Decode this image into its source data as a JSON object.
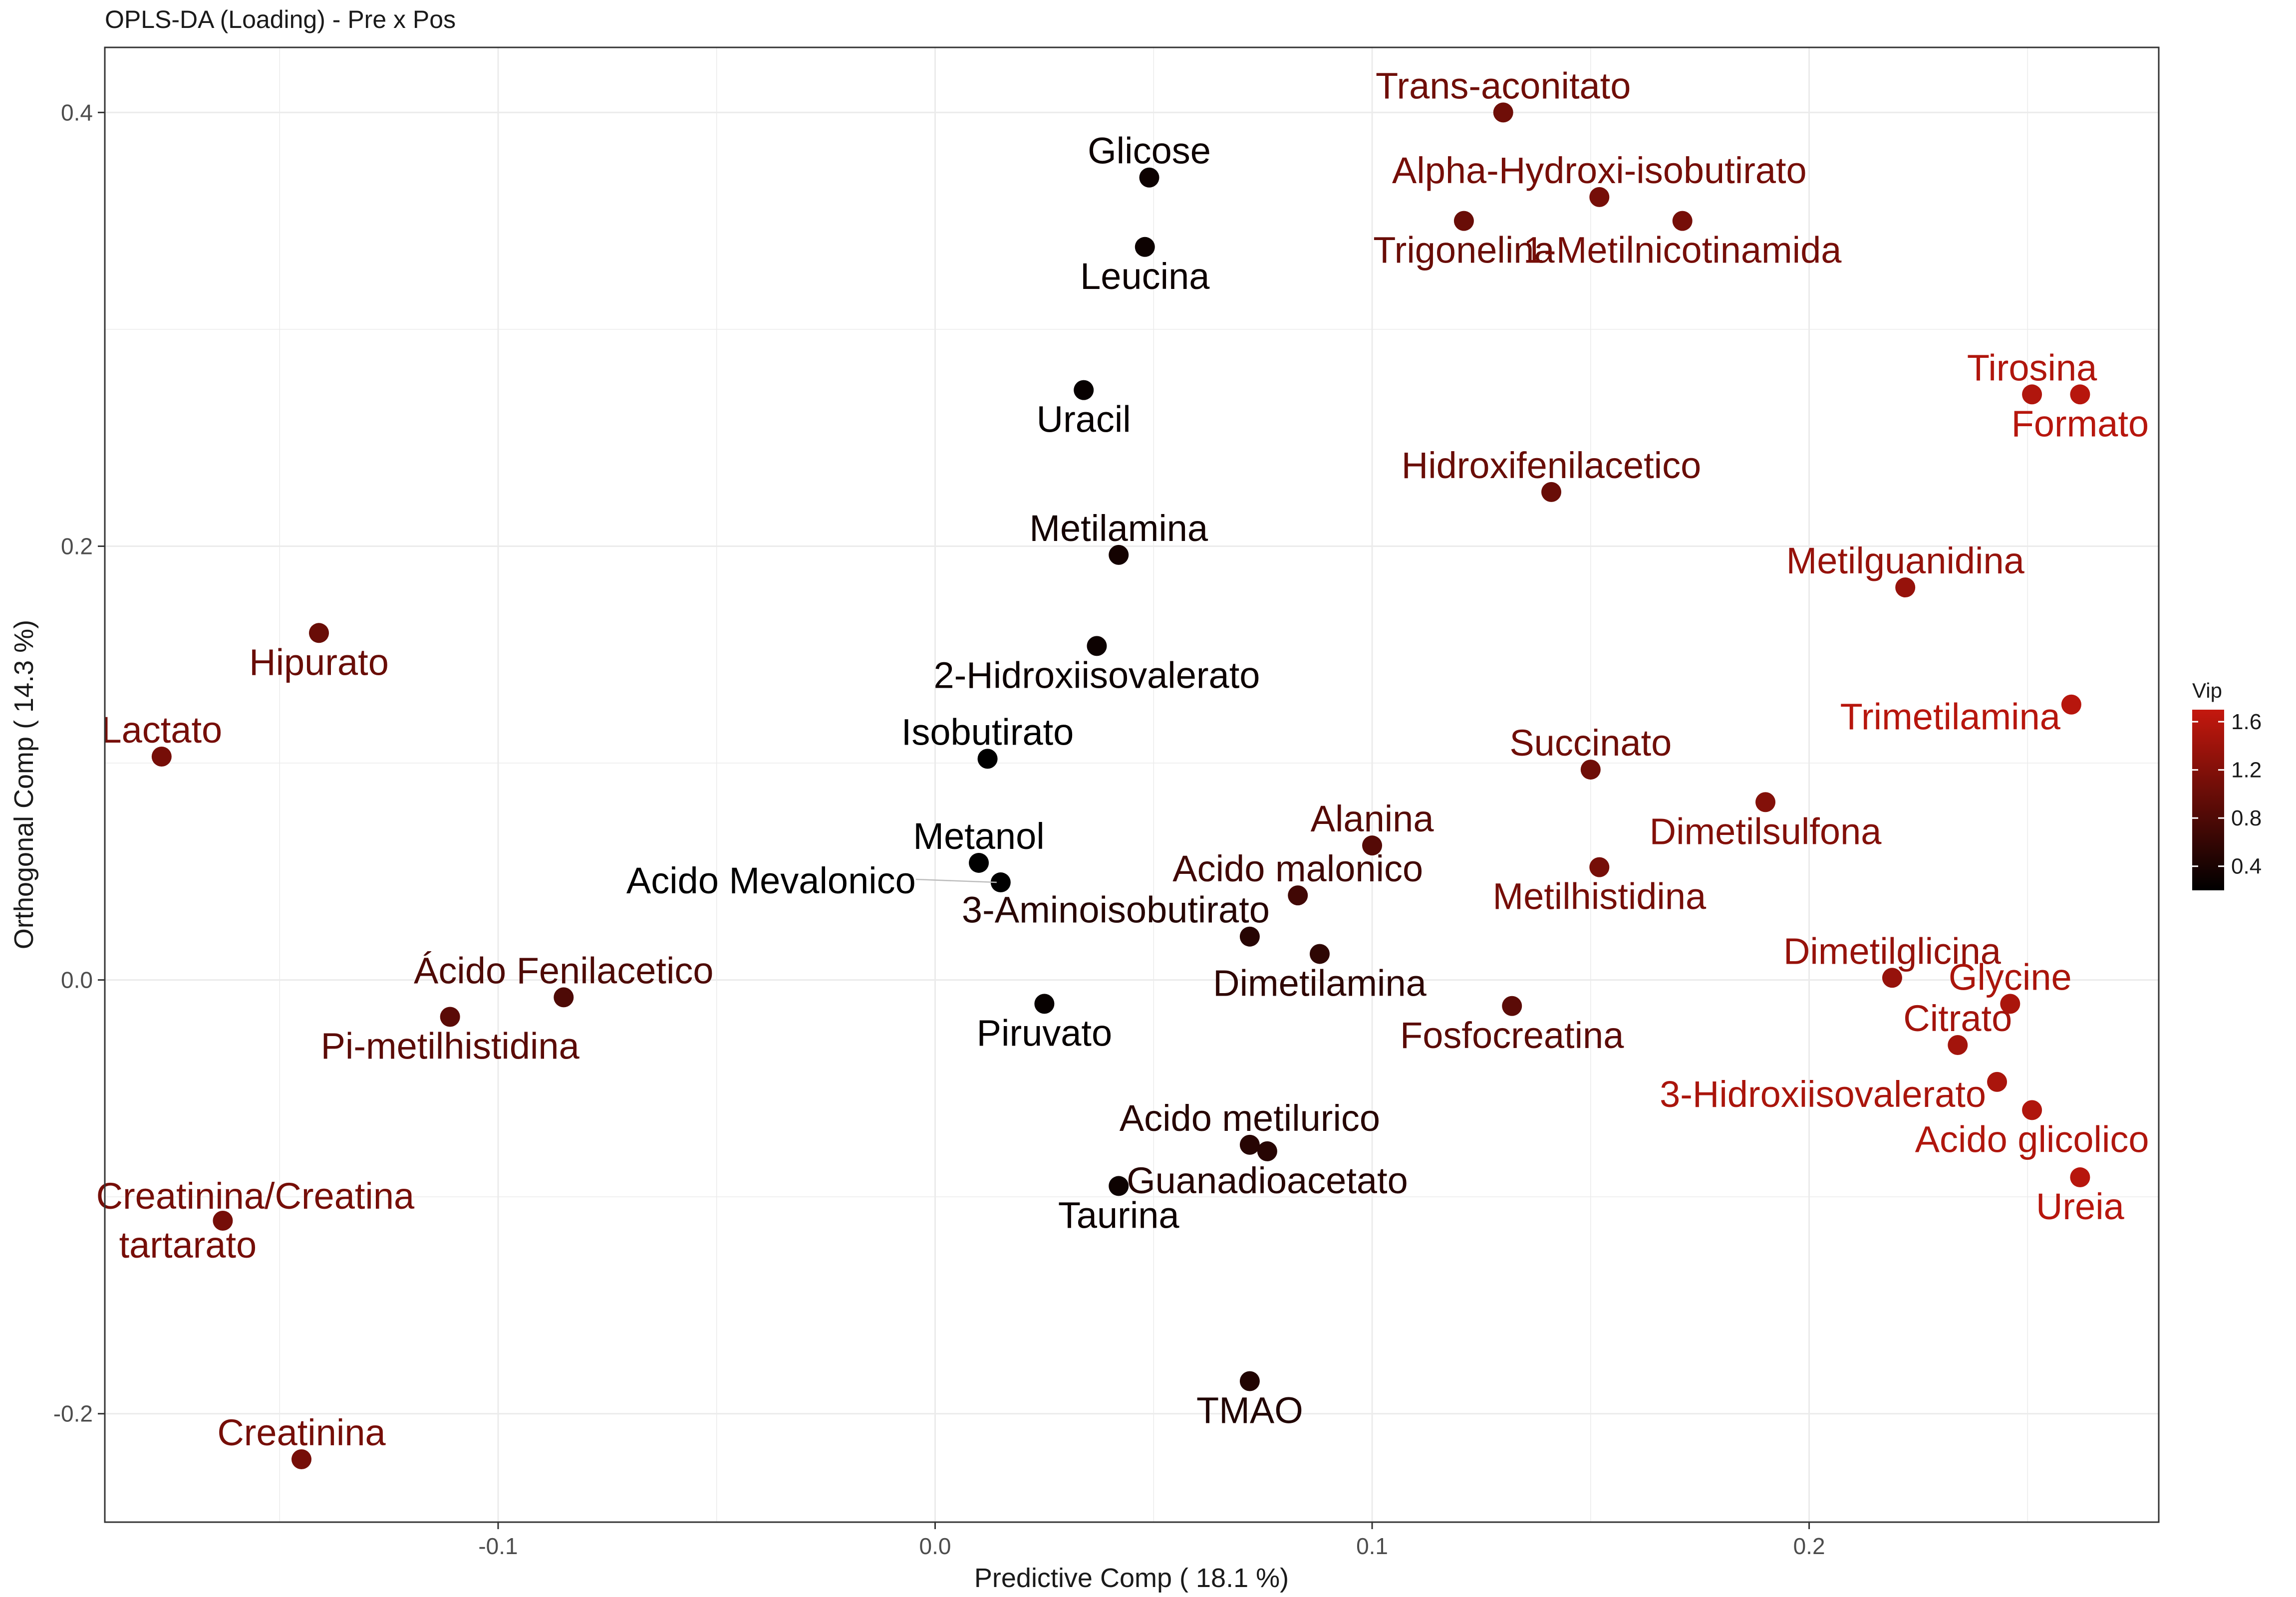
{
  "colors": {
    "low": "#000000",
    "high": "#c4180e",
    "grid": "#ebebeb",
    "panel_border": "#333333"
  },
  "chart_data": {
    "type": "scatter",
    "title": "OPLS-DA (Loading) - Pre x Pos",
    "xlabel": "Predictive Comp  ( 18.1 %)",
    "ylabel": "Orthogonal Comp  ( 14.3 %)",
    "xlim": [
      -0.19,
      0.28
    ],
    "ylim": [
      -0.25,
      0.43
    ],
    "x_ticks": [
      -0.1,
      0.0,
      0.1,
      0.2
    ],
    "x_tick_labels": [
      "-0.1",
      "0.0",
      "0.1",
      "0.2"
    ],
    "y_ticks": [
      -0.2,
      0.0,
      0.2,
      0.4
    ],
    "y_tick_labels": [
      "-0.2",
      "0.0",
      "0.2",
      "0.4"
    ],
    "grid": true,
    "legend": {
      "title": "Vip",
      "position": "right",
      "range": [
        0.2,
        1.7
      ],
      "ticks": [
        0.4,
        0.8,
        1.2,
        1.6
      ],
      "tick_labels": [
        "0.4",
        "0.8",
        "1.2",
        "1.6"
      ]
    },
    "points": [
      {
        "label": "Trans-aconitato",
        "x": 0.13,
        "y": 0.4,
        "vip": 1.05,
        "pos": "above"
      },
      {
        "label": "Glicose",
        "x": 0.049,
        "y": 0.37,
        "vip": 0.3,
        "pos": "above"
      },
      {
        "label": "Alpha-Hydroxi-isobutirato",
        "x": 0.152,
        "y": 0.361,
        "vip": 1.1,
        "pos": "above"
      },
      {
        "label": "Trigonelina",
        "x": 0.121,
        "y": 0.35,
        "vip": 1.0,
        "pos": "below"
      },
      {
        "label": "1-Metilnicotinamida",
        "x": 0.171,
        "y": 0.35,
        "vip": 1.1,
        "pos": "below"
      },
      {
        "label": "Leucina",
        "x": 0.048,
        "y": 0.338,
        "vip": 0.3,
        "pos": "below"
      },
      {
        "label": "Uracil",
        "x": 0.034,
        "y": 0.272,
        "vip": 0.25,
        "pos": "below"
      },
      {
        "label": "Tirosina",
        "x": 0.251,
        "y": 0.27,
        "vip": 1.55,
        "pos": "above"
      },
      {
        "label": "Formato",
        "x": 0.262,
        "y": 0.27,
        "vip": 1.6,
        "pos": "below"
      },
      {
        "label": "Hidroxifenilacetico",
        "x": 0.141,
        "y": 0.225,
        "vip": 1.0,
        "pos": "above"
      },
      {
        "label": "Metilamina",
        "x": 0.042,
        "y": 0.196,
        "vip": 0.35,
        "pos": "above"
      },
      {
        "label": "Metilguanidina",
        "x": 0.222,
        "y": 0.181,
        "vip": 1.35,
        "pos": "above"
      },
      {
        "label": "Hipurato",
        "x": -0.141,
        "y": 0.16,
        "vip": 1.0,
        "pos": "below"
      },
      {
        "label": "2-Hidroxiisovalerato",
        "x": 0.037,
        "y": 0.154,
        "vip": 0.3,
        "pos": "below"
      },
      {
        "label": "Trimetilamina",
        "x": 0.26,
        "y": 0.127,
        "vip": 1.6,
        "pos": "left-below"
      },
      {
        "label": "Lactato",
        "x": -0.177,
        "y": 0.103,
        "vip": 1.1,
        "pos": "above"
      },
      {
        "label": "Isobutirato",
        "x": 0.012,
        "y": 0.102,
        "vip": 0.2,
        "pos": "above"
      },
      {
        "label": "Succinato",
        "x": 0.15,
        "y": 0.097,
        "vip": 1.05,
        "pos": "above"
      },
      {
        "label": "Dimetilsulfona",
        "x": 0.19,
        "y": 0.082,
        "vip": 1.2,
        "pos": "below"
      },
      {
        "label": "Alanina",
        "x": 0.1,
        "y": 0.062,
        "vip": 0.85,
        "pos": "above"
      },
      {
        "label": "Metanol",
        "x": 0.01,
        "y": 0.054,
        "vip": 0.2,
        "pos": "above"
      },
      {
        "label": "Metilhistidina",
        "x": 0.152,
        "y": 0.052,
        "vip": 1.1,
        "pos": "below"
      },
      {
        "label": "Acido Mevalonico",
        "x": 0.015,
        "y": 0.045,
        "vip": 0.2,
        "pos": "left-line"
      },
      {
        "label": "Acido malonico",
        "x": 0.083,
        "y": 0.039,
        "vip": 0.7,
        "pos": "above"
      },
      {
        "label": "3-Aminoisobutirato",
        "x": 0.072,
        "y": 0.02,
        "vip": 0.5,
        "pos": "above-left"
      },
      {
        "label": "Dimetilamina",
        "x": 0.088,
        "y": 0.012,
        "vip": 0.55,
        "pos": "below"
      },
      {
        "label": "Dimetilglicina",
        "x": 0.219,
        "y": 0.001,
        "vip": 1.35,
        "pos": "above"
      },
      {
        "label": "Ácido Fenilacetico",
        "x": -0.085,
        "y": -0.008,
        "vip": 0.8,
        "pos": "above"
      },
      {
        "label": "Piruvato",
        "x": 0.025,
        "y": -0.011,
        "vip": 0.25,
        "pos": "below"
      },
      {
        "label": "Fosfocreatina",
        "x": 0.132,
        "y": -0.012,
        "vip": 0.9,
        "pos": "below"
      },
      {
        "label": "Glycine",
        "x": 0.246,
        "y": -0.011,
        "vip": 1.5,
        "pos": "above"
      },
      {
        "label": "Pi-metilhistidina",
        "x": -0.111,
        "y": -0.017,
        "vip": 0.9,
        "pos": "below"
      },
      {
        "label": "Citrato",
        "x": 0.234,
        "y": -0.03,
        "vip": 1.45,
        "pos": "above"
      },
      {
        "label": "3-Hidroxiisovalerato",
        "x": 0.243,
        "y": -0.047,
        "vip": 1.5,
        "pos": "left-below"
      },
      {
        "label": "Acido glicolico",
        "x": 0.251,
        "y": -0.06,
        "vip": 1.55,
        "pos": "below"
      },
      {
        "label": "Acido metilurico",
        "x": 0.072,
        "y": -0.076,
        "vip": 0.5,
        "pos": "above"
      },
      {
        "label": "Guanadioacetato",
        "x": 0.076,
        "y": -0.079,
        "vip": 0.5,
        "pos": "below"
      },
      {
        "label": "Ureia",
        "x": 0.262,
        "y": -0.091,
        "vip": 1.6,
        "pos": "below"
      },
      {
        "label": "Taurina",
        "x": 0.042,
        "y": -0.095,
        "vip": 0.3,
        "pos": "below"
      },
      {
        "label": "Creatinina/Creatina tartarato",
        "x": -0.163,
        "y": -0.111,
        "vip": 1.1,
        "pos": "two-line"
      },
      {
        "label": "TMAO",
        "x": 0.072,
        "y": -0.185,
        "vip": 0.45,
        "pos": "below"
      },
      {
        "label": "Creatinina",
        "x": -0.145,
        "y": -0.221,
        "vip": 1.1,
        "pos": "above"
      }
    ]
  }
}
